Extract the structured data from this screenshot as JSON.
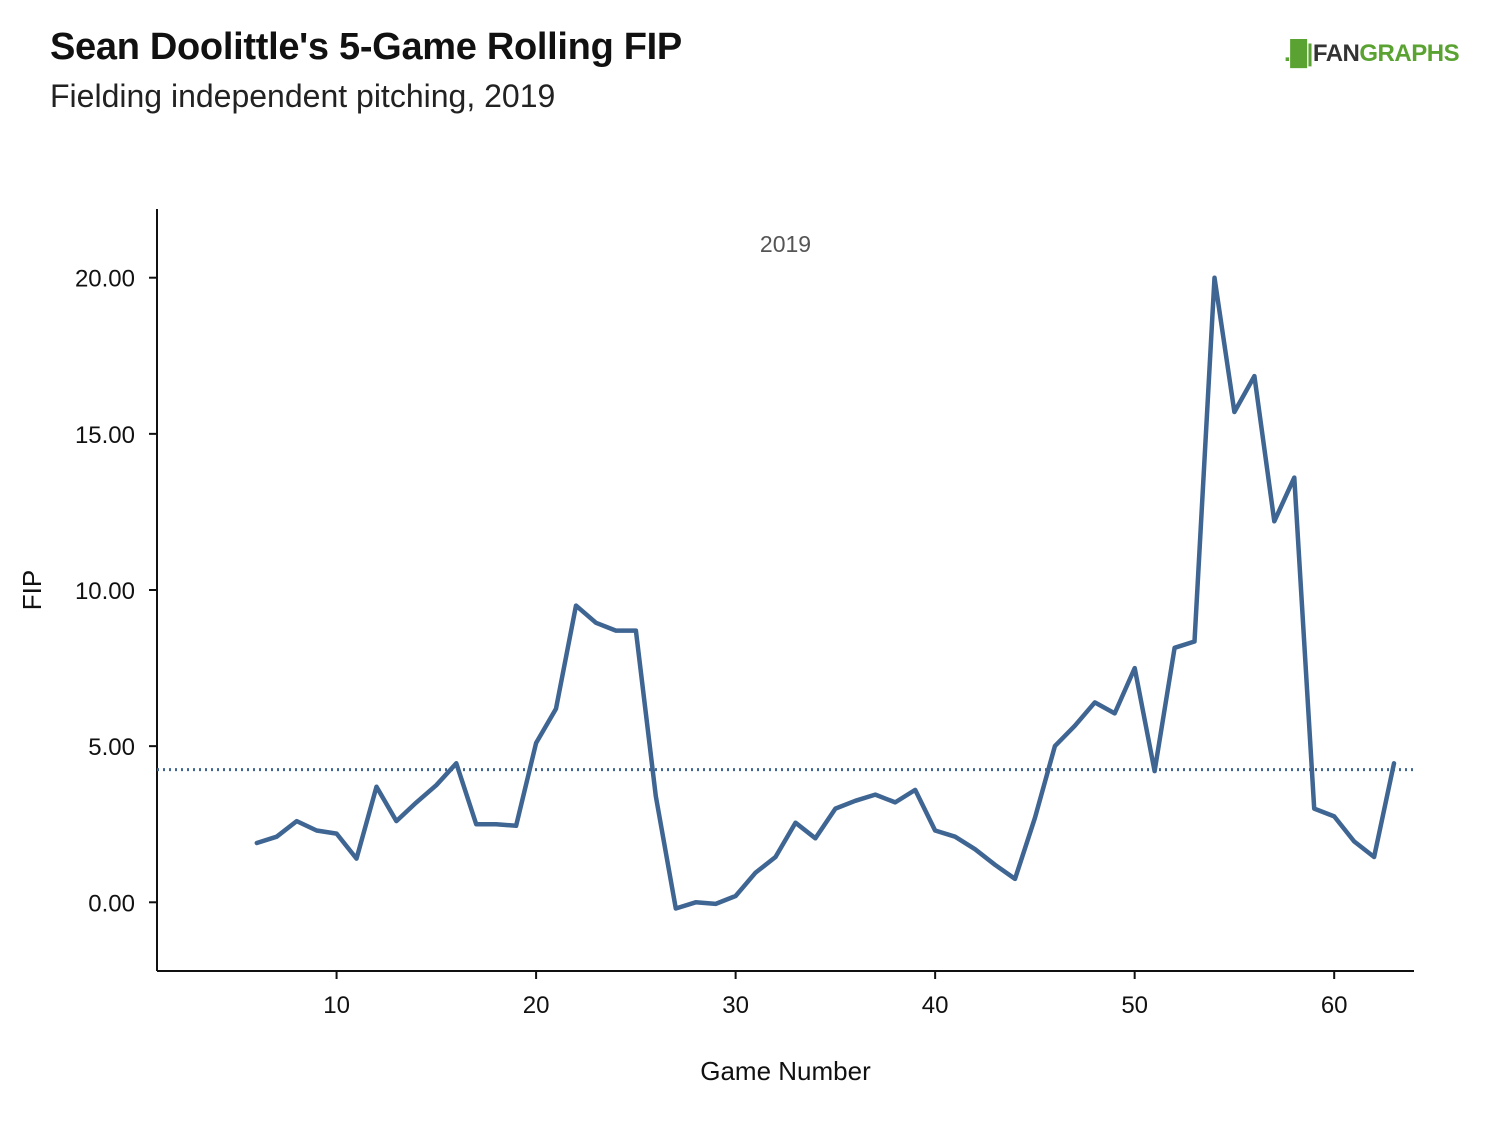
{
  "title": "Sean Doolittle's 5-Game Rolling FIP",
  "subtitle": "Fielding independent pitching, 2019",
  "logo": {
    "mark": ".█|",
    "fan": "FAN",
    "graphs": "GRAPHS"
  },
  "colors": {
    "line": "#3f6593",
    "axis": "#111111",
    "brand_green": "#5aa332"
  },
  "chart_data": {
    "type": "line",
    "title": "Sean Doolittle's 5-Game Rolling FIP",
    "subtitle": "Fielding independent pitching, 2019",
    "facet_label": "2019",
    "xlabel": "Game Number",
    "ylabel": "FIP",
    "xlim": [
      1,
      64
    ],
    "ylim": [
      -2.2,
      22.2
    ],
    "x_ticks": [
      10,
      20,
      30,
      40,
      50,
      60
    ],
    "y_ticks": [
      0,
      5,
      10,
      15,
      20
    ],
    "y_tick_labels": [
      "0.00",
      "5.00",
      "10.00",
      "15.00",
      "20.00"
    ],
    "x_tick_labels": [
      "10",
      "20",
      "30",
      "40",
      "50",
      "60"
    ],
    "reference_line": {
      "y": 4.25,
      "style": "dotted"
    },
    "series": [
      {
        "x": [
          6,
          7,
          8,
          9,
          10,
          11,
          12,
          13,
          14,
          15,
          16,
          17,
          18,
          19,
          20,
          21,
          22,
          23,
          24,
          25,
          26,
          27,
          28,
          29,
          30,
          31,
          32,
          33,
          34,
          35,
          36,
          37,
          38,
          39,
          40,
          41,
          42,
          43,
          44,
          45,
          46,
          47,
          48,
          49,
          50,
          51,
          52,
          53,
          54,
          55,
          56,
          57,
          58,
          59,
          60,
          61,
          62,
          63
        ],
        "y": [
          1.9,
          2.1,
          2.6,
          2.3,
          2.2,
          1.4,
          3.7,
          2.6,
          3.2,
          3.75,
          4.45,
          2.5,
          2.5,
          2.45,
          5.1,
          6.2,
          9.5,
          8.95,
          8.7,
          8.7,
          3.4,
          -0.2,
          0.0,
          -0.05,
          0.2,
          0.95,
          1.45,
          2.55,
          2.05,
          3.0,
          3.25,
          3.45,
          3.2,
          3.6,
          2.3,
          2.1,
          1.7,
          1.2,
          0.75,
          2.7,
          5.0,
          5.65,
          6.4,
          6.05,
          7.5,
          4.2,
          8.15,
          8.35,
          20.0,
          15.7,
          16.85,
          12.2,
          13.6,
          3.0,
          2.75,
          1.95,
          1.45,
          4.45
        ]
      }
    ]
  }
}
